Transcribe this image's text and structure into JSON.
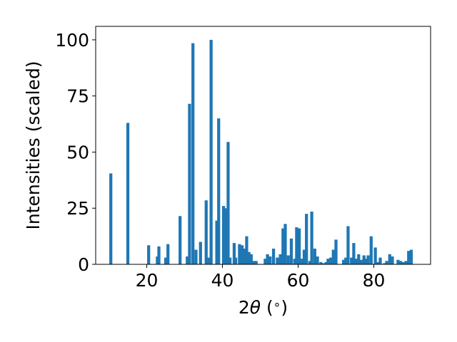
{
  "chart_data": {
    "type": "bar",
    "xlabel_parts": [
      "2",
      "θ",
      " (",
      "∘",
      ")"
    ],
    "ylabel": "Intensities (scaled)",
    "xlim": [
      6.5,
      95.0
    ],
    "ylim": [
      0,
      106
    ],
    "xticks": [
      20,
      40,
      60,
      80
    ],
    "yticks": [
      0,
      25,
      50,
      75,
      100
    ],
    "grid": false,
    "bar_color": "#1f77b4",
    "bar_width": 0.8,
    "x": [
      10.5,
      15.0,
      20.5,
      22.8,
      23.2,
      25.0,
      25.6,
      28.8,
      30.7,
      31.3,
      32.2,
      33.0,
      34.2,
      35.7,
      36.3,
      37.0,
      38.5,
      39.0,
      40.3,
      41.0,
      41.5,
      42.0,
      43.1,
      43.5,
      44.5,
      45.2,
      45.9,
      46.4,
      47.0,
      47.6,
      48.3,
      48.9,
      51.3,
      51.9,
      52.6,
      53.5,
      54.5,
      55.3,
      56.0,
      56.6,
      57.4,
      58.2,
      59.1,
      59.6,
      60.3,
      61.0,
      61.6,
      62.2,
      63.1,
      63.6,
      64.4,
      65.1,
      66.0,
      66.6,
      67.4,
      67.9,
      68.6,
      69.3,
      70.0,
      72.0,
      72.6,
      73.2,
      74.1,
      74.7,
      75.3,
      76.0,
      76.7,
      77.4,
      78.0,
      78.5,
      79.3,
      80.4,
      81.0,
      81.7,
      82.8,
      83.4,
      84.2,
      84.9,
      86.4,
      87.1,
      87.8,
      88.5,
      89.2,
      89.9
    ],
    "values": [
      40.5,
      63.0,
      8.5,
      3.5,
      8.0,
      3.0,
      9.0,
      21.5,
      3.5,
      71.5,
      98.5,
      6.5,
      10.0,
      28.5,
      3.0,
      100.0,
      19.5,
      65.0,
      26.0,
      25.0,
      54.5,
      3.0,
      9.5,
      3.0,
      9.0,
      8.5,
      7.0,
      12.5,
      5.5,
      4.5,
      1.5,
      1.5,
      2.5,
      4.5,
      3.5,
      7.0,
      3.0,
      4.5,
      16.0,
      18.0,
      4.0,
      11.5,
      2.5,
      16.5,
      16.0,
      2.5,
      6.5,
      22.5,
      1.5,
      23.5,
      7.0,
      3.5,
      1.0,
      0.5,
      1.0,
      2.5,
      3.0,
      6.5,
      11.0,
      2.0,
      3.0,
      17.0,
      3.0,
      9.5,
      2.5,
      4.5,
      2.0,
      4.0,
      2.5,
      4.0,
      12.5,
      7.5,
      1.0,
      3.0,
      0.5,
      1.5,
      4.5,
      3.5,
      2.0,
      1.5,
      1.0,
      1.5,
      6.0,
      6.5
    ]
  }
}
